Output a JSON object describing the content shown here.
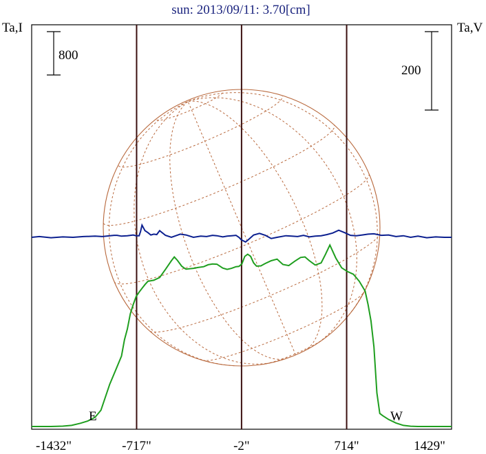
{
  "title": "sun: 2013/09/11: 3.70[cm]",
  "left_axis_label": "Ta,I",
  "right_axis_label": "Ta,V",
  "left_scale_bar_label": "800",
  "right_scale_bar_label": "200",
  "limb_labels": {
    "east": "E",
    "west": "W"
  },
  "x_tick_labels": [
    "-1432\"",
    "-717\"",
    "-2\"",
    "714\"",
    "1429\""
  ],
  "colors": {
    "intensity": "#1e9e1e",
    "polarization": "#0b1f8f",
    "grid": "#b8683c",
    "limb_lines": "#3a1010",
    "title": "#1a237e"
  },
  "chart_data": {
    "type": "line",
    "title": "sun: 2013/09/11: 3.70[cm]",
    "xlabel": "",
    "x_ticks": [
      -1432,
      -717,
      -2,
      714,
      1429
    ],
    "xlim": [
      -1432,
      1429
    ],
    "vertical_lines_x": [
      -717,
      -2,
      714
    ],
    "series": [
      {
        "name": "Ta,I",
        "axis": "left",
        "x": [
          -1432,
          -1380,
          -1300,
          -1220,
          -1160,
          -1100,
          -1050,
          -1000,
          -960,
          -900,
          -860,
          -820,
          -800,
          -780,
          -760,
          -740,
          -720,
          -700,
          -680,
          -660,
          -640,
          -600,
          -560,
          -520,
          -480,
          -460,
          -440,
          -410,
          -390,
          -380,
          -360,
          -330,
          -300,
          -260,
          -230,
          -200,
          -170,
          -130,
          -100,
          -70,
          -40,
          -20,
          0,
          20,
          40,
          60,
          80,
          100,
          130,
          160,
          200,
          240,
          280,
          320,
          360,
          400,
          430,
          460,
          500,
          540,
          570,
          600,
          640,
          680,
          720,
          760,
          800,
          840,
          860,
          880,
          900,
          920,
          940,
          960,
          1000,
          1050,
          1100,
          1150,
          1200,
          1300,
          1380,
          1429
        ],
        "y": [
          0,
          0,
          0,
          6,
          20,
          60,
          100,
          170,
          300,
          780,
          1040,
          1300,
          1600,
          1800,
          2080,
          2250,
          2400,
          2480,
          2550,
          2620,
          2680,
          2700,
          2750,
          2900,
          3060,
          3130,
          3070,
          2960,
          2920,
          2905,
          2910,
          2920,
          2935,
          2950,
          2985,
          3000,
          2995,
          2925,
          2900,
          2920,
          2950,
          2955,
          3000,
          3140,
          3180,
          3140,
          3020,
          2960,
          2965,
          3010,
          3060,
          3090,
          2990,
          2970,
          3050,
          3120,
          3130,
          3060,
          2980,
          3020,
          3180,
          3350,
          3110,
          2930,
          2860,
          2810,
          2680,
          2500,
          2250,
          1950,
          1470,
          620,
          240,
          200,
          130,
          65,
          20,
          5,
          0,
          0,
          0,
          0
        ]
      },
      {
        "name": "Ta,V",
        "axis": "right",
        "x": [
          -1432,
          -1380,
          -1300,
          -1220,
          -1150,
          -1080,
          -1000,
          -950,
          -900,
          -870,
          -850,
          -820,
          -780,
          -740,
          -720,
          -700,
          -690,
          -680,
          -660,
          -640,
          -620,
          -600,
          -580,
          -560,
          -520,
          -480,
          -450,
          -420,
          -380,
          -330,
          -280,
          -240,
          -200,
          -170,
          -130,
          -100,
          -70,
          -40,
          -20,
          -5,
          10,
          25,
          45,
          80,
          120,
          160,
          200,
          240,
          300,
          340,
          380,
          420,
          460,
          500,
          540,
          580,
          620,
          660,
          700,
          740,
          780,
          820,
          860,
          900,
          950,
          1000,
          1050,
          1100,
          1150,
          1200,
          1260,
          1320,
          1380,
          1429
        ],
        "y": [
          0,
          2,
          -1,
          1,
          0,
          2,
          3,
          2,
          4,
          5,
          5,
          3,
          4,
          6,
          4,
          4,
          15,
          31,
          17,
          12,
          6,
          8,
          7,
          17,
          5,
          0,
          4,
          8,
          6,
          0,
          3,
          2,
          5,
          4,
          1,
          3,
          4,
          5,
          0,
          -6,
          -9,
          -12,
          -6,
          6,
          10,
          5,
          -3,
          0,
          4,
          3,
          2,
          5,
          1,
          3,
          4,
          7,
          11,
          18,
          12,
          5,
          4,
          6,
          8,
          9,
          5,
          6,
          2,
          4,
          0,
          3,
          -1,
          1,
          0,
          0
        ]
      }
    ]
  }
}
